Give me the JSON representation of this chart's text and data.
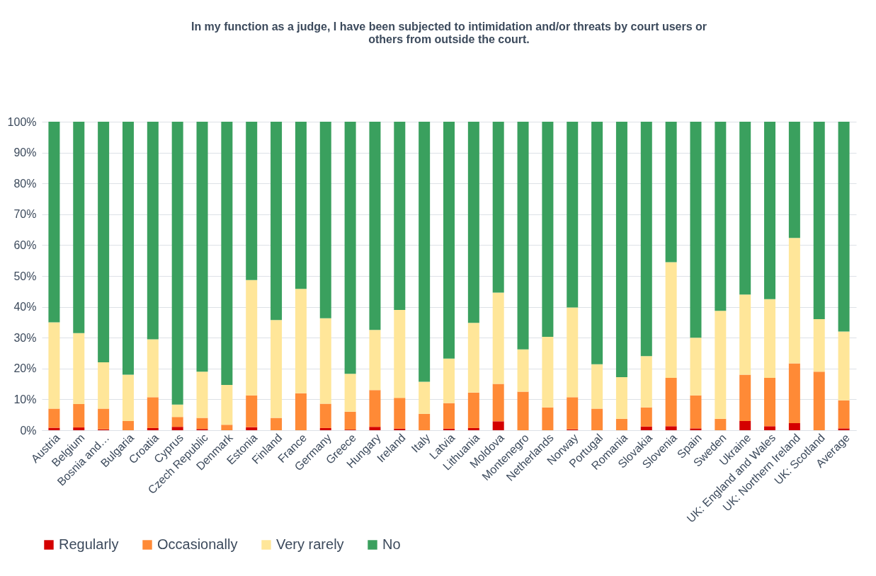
{
  "chart_data": {
    "type": "bar",
    "title": "In my function as a judge, I have been subjected to intimidation and/or threats by court users or others from outside the court.",
    "stacked": true,
    "categories": [
      "Austria",
      "Belgium",
      "Bosnia and…",
      "Bulgaria",
      "Croatia",
      "Cyprus",
      "Czech Republic",
      "Denmark",
      "Estonia",
      "Finland",
      "France",
      "Germany",
      "Greece",
      "Hungary",
      "Ireland",
      "Italy",
      "Latvia",
      "Lithuania",
      "Moldova",
      "Montenegro",
      "Netherlands",
      "Norway",
      "Portugal",
      "Romania",
      "Slovakia",
      "Slovenia",
      "Spain",
      "Sweden",
      "Ukraine",
      "UK: England and Wales",
      "UK: Northern Ireland",
      "UK: Scotland",
      "Average"
    ],
    "series": [
      {
        "name": "Regularly",
        "color": "#d40000",
        "values": [
          0.8,
          0.9,
          0.3,
          0,
          0.7,
          1.1,
          0.4,
          0,
          1.0,
          0,
          0,
          0.7,
          0.2,
          1.1,
          0.5,
          0,
          0.5,
          0.7,
          2.9,
          0,
          0,
          0.3,
          0,
          0,
          1.2,
          1.3,
          0.6,
          0,
          3.0,
          1.3,
          2.3,
          0,
          0.6
        ]
      },
      {
        "name": "Occasionally",
        "color": "#ff8a36",
        "values": [
          6.2,
          7.6,
          6.7,
          3,
          10,
          3.2,
          3.6,
          1.8,
          10.3,
          4,
          12,
          7.9,
          5.8,
          11.9,
          10,
          5.3,
          8.3,
          11.5,
          12.1,
          12.5,
          7.4,
          10.4,
          7,
          3.7,
          6.2,
          15.7,
          10.7,
          3.7,
          15,
          15.7,
          19.4,
          19,
          9.1
        ]
      },
      {
        "name": "Very rarely",
        "color": "#ffe699",
        "values": [
          28,
          23,
          15,
          15,
          18.8,
          4,
          15,
          12.9,
          37.4,
          31.7,
          33.8,
          27.7,
          12.3,
          19.5,
          28.5,
          10.4,
          14.4,
          22.6,
          29.6,
          13.7,
          22.9,
          29.1,
          14.4,
          13.5,
          16.6,
          37.5,
          18.7,
          35,
          26,
          25.5,
          40.6,
          17,
          22.3
        ]
      },
      {
        "name": "No",
        "color": "#3aa05e",
        "values": [
          65,
          68.5,
          78,
          82,
          70.5,
          91.7,
          81,
          85.3,
          51.3,
          64.3,
          54.2,
          63.7,
          81.7,
          67.5,
          61,
          84.3,
          76.8,
          65.2,
          55.4,
          73.8,
          69.7,
          60.2,
          78.6,
          82.8,
          76,
          45.5,
          70,
          61.3,
          56,
          57.5,
          37.7,
          64,
          68
        ]
      }
    ],
    "ylim": [
      0,
      100
    ],
    "yticks": [
      {
        "value": 0,
        "label": "0%"
      },
      {
        "value": 10,
        "label": "10%"
      },
      {
        "value": 20,
        "label": "20%"
      },
      {
        "value": 30,
        "label": "30%"
      },
      {
        "value": 40,
        "label": "40%"
      },
      {
        "value": 50,
        "label": "50%"
      },
      {
        "value": 60,
        "label": "60%"
      },
      {
        "value": 70,
        "label": "70%"
      },
      {
        "value": 80,
        "label": "80%"
      },
      {
        "value": 90,
        "label": "90%"
      },
      {
        "value": 100,
        "label": "100%"
      }
    ],
    "grid": "y",
    "legend": "bottom"
  }
}
